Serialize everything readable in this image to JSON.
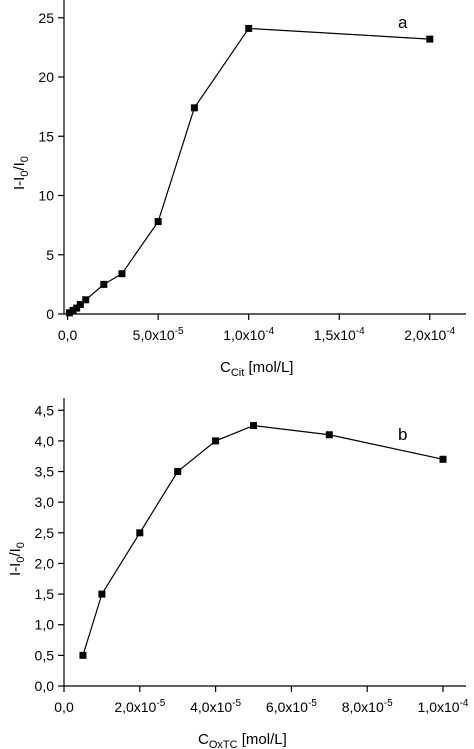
{
  "chart_data": [
    {
      "type": "line",
      "panel_label": "a",
      "x": [
        1e-06,
        3e-06,
        5e-06,
        7e-06,
        1e-05,
        2e-05,
        3e-05,
        5e-05,
        7e-05,
        0.0001,
        0.0002
      ],
      "series": [
        {
          "values": [
            0.1,
            0.3,
            0.5,
            0.8,
            1.2,
            2.5,
            3.4,
            7.8,
            17.4,
            24.1,
            23.2
          ]
        }
      ],
      "marker": "square",
      "color": "#000000",
      "xlim": [
        -2e-06,
        0.00022
      ],
      "ylim": [
        0,
        26.5
      ],
      "xticks": [
        {
          "m": "0,0",
          "e": ""
        },
        {
          "m": "5,0x10",
          "e": "-5"
        },
        {
          "m": "1,0x10",
          "e": "-4"
        },
        {
          "m": "1,5x10",
          "e": "-4"
        },
        {
          "m": "2,0x10",
          "e": "-4"
        }
      ],
      "yticks": [
        "0",
        "5",
        "10",
        "15",
        "20",
        "25"
      ],
      "xlabel": {
        "main": "C",
        "sub": "Cit",
        "unit": " [mol/L]"
      },
      "ylabel": {
        "p1": "I-I",
        "s1": "0",
        "p2": "/I",
        "s2": "0"
      }
    },
    {
      "type": "line",
      "panel_label": "b",
      "x": [
        5e-06,
        1e-05,
        2e-05,
        3e-05,
        4e-05,
        5e-05,
        7e-05,
        0.0001
      ],
      "series": [
        {
          "values": [
            0.5,
            1.5,
            2.5,
            3.5,
            4.0,
            4.25,
            4.1,
            3.7
          ]
        }
      ],
      "marker": "square",
      "color": "#000000",
      "xlim": [
        0,
        0.0001
      ],
      "ylim": [
        0,
        4.7
      ],
      "xticks": [
        {
          "m": "0,0",
          "e": ""
        },
        {
          "m": "2,0x10",
          "e": "-5"
        },
        {
          "m": "4,0x10",
          "e": "-5"
        },
        {
          "m": "6,0x10",
          "e": "-5"
        },
        {
          "m": "8,0x10",
          "e": "-5"
        },
        {
          "m": "1,0x10",
          "e": "-4"
        }
      ],
      "yticks": [
        "0,0",
        "0,5",
        "1,0",
        "1,5",
        "2,0",
        "2,5",
        "3,0",
        "3,5",
        "4,0",
        "4,5"
      ],
      "xlabel": {
        "main": "C",
        "sub": "OxTC",
        "unit": " [mol/L]"
      },
      "ylabel": {
        "p1": "I-I",
        "s1": "0",
        "p2": "/I",
        "s2": "0"
      }
    }
  ]
}
